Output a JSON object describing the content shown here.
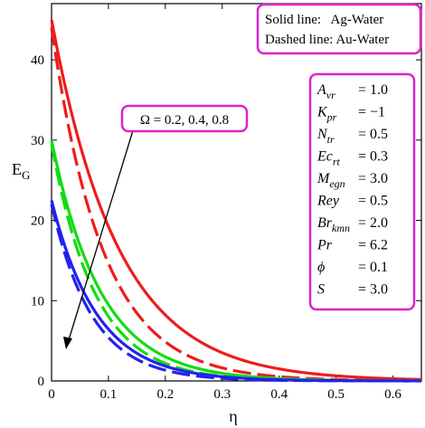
{
  "chart_data": {
    "type": "line",
    "xlabel": "η",
    "ylabel": "E",
    "ylabel_sub": "G",
    "xlim": [
      0,
      0.65
    ],
    "ylim": [
      0,
      47
    ],
    "x_ticks": [
      "0",
      "0.1",
      "0.2",
      "0.3",
      "0.4",
      "0.5",
      "0.6"
    ],
    "y_ticks": [
      "0",
      "10",
      "20",
      "30",
      "40"
    ],
    "legend": [
      "Solid line:   Ag-Water",
      "Dashed line: Au-Water"
    ],
    "annotation": "Ω = 0.2, 0.4, 0.8",
    "parameters": [
      {
        "name": "A",
        "sub": "vr",
        "value": "= 1.0"
      },
      {
        "name": "K",
        "sub": "pr",
        "value": "= −1"
      },
      {
        "name": "N",
        "sub": "tr",
        "value": "= 0.5"
      },
      {
        "name": "Ec",
        "sub": "rt",
        "value": "= 0.3"
      },
      {
        "name": "M",
        "sub": "egn",
        "value": "= 3.0"
      },
      {
        "name": "Rey",
        "sub": "",
        "value": "= 0.5"
      },
      {
        "name": "Br",
        "sub": "kmn",
        "value": "= 2.0"
      },
      {
        "name": "Pr",
        "sub": "",
        "value": "= 6.2"
      },
      {
        "name": "ϕ",
        "sub": "",
        "value": "= 0.1"
      },
      {
        "name": "S",
        "sub": "",
        "value": "= 3.0"
      }
    ],
    "series": [
      {
        "omega": 0.2,
        "fluid": "Ag-Water",
        "style": "solid",
        "color": "#ee1c1c",
        "y0": 45.0,
        "decay": 8.5
      },
      {
        "omega": 0.2,
        "fluid": "Au-Water",
        "style": "dashed",
        "color": "#ee1c1c",
        "y0": 44.0,
        "decay": 11.0
      },
      {
        "omega": 0.4,
        "fluid": "Ag-Water",
        "style": "solid",
        "color": "#11dd11",
        "y0": 30.0,
        "decay": 11.5
      },
      {
        "omega": 0.4,
        "fluid": "Au-Water",
        "style": "dashed",
        "color": "#11dd11",
        "y0": 29.5,
        "decay": 13.0
      },
      {
        "omega": 0.8,
        "fluid": "Ag-Water",
        "style": "solid",
        "color": "#2222ee",
        "y0": 22.5,
        "decay": 12.5
      },
      {
        "omega": 0.8,
        "fluid": "Au-Water",
        "style": "dashed",
        "color": "#2222ee",
        "y0": 22.0,
        "decay": 14.0
      }
    ]
  }
}
